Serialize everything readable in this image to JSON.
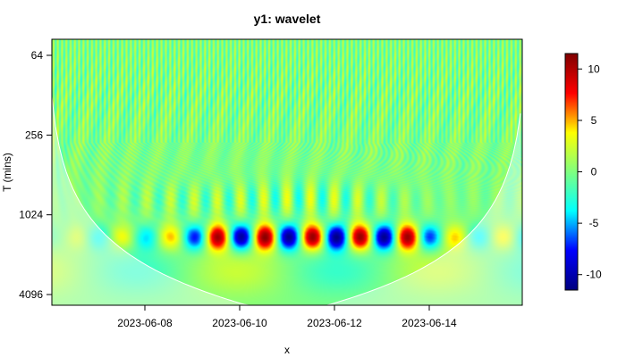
{
  "chart_data": {
    "type": "heatmap",
    "title": "y1: wavelet",
    "xlabel": "x",
    "ylabel": "T (mins)",
    "x_ticks": [
      "2023-06-08",
      "2023-06-10",
      "2023-06-12",
      "2023-06-14"
    ],
    "y_ticks": [
      "64",
      "256",
      "1024",
      "4096"
    ],
    "y_scale": "log2",
    "y_axis": "reversed (small periods at top, large periods at bottom)",
    "colorbar": {
      "ticks": [
        "10",
        "5",
        "0",
        "-5",
        "-10"
      ],
      "range": [
        -11.5,
        11.5
      ],
      "colors": [
        "#000080",
        "#0000ff",
        "#00ffff",
        "#80ff80",
        "#ffff00",
        "#ff0000",
        "#800000"
      ]
    },
    "cone_of_influence": "shaded lighter outside a U-shaped cone",
    "dominant_band": {
      "period_mins": 1500,
      "from": "2023-06-09",
      "to": "2023-06-14",
      "peak_amplitude": 11
    }
  }
}
